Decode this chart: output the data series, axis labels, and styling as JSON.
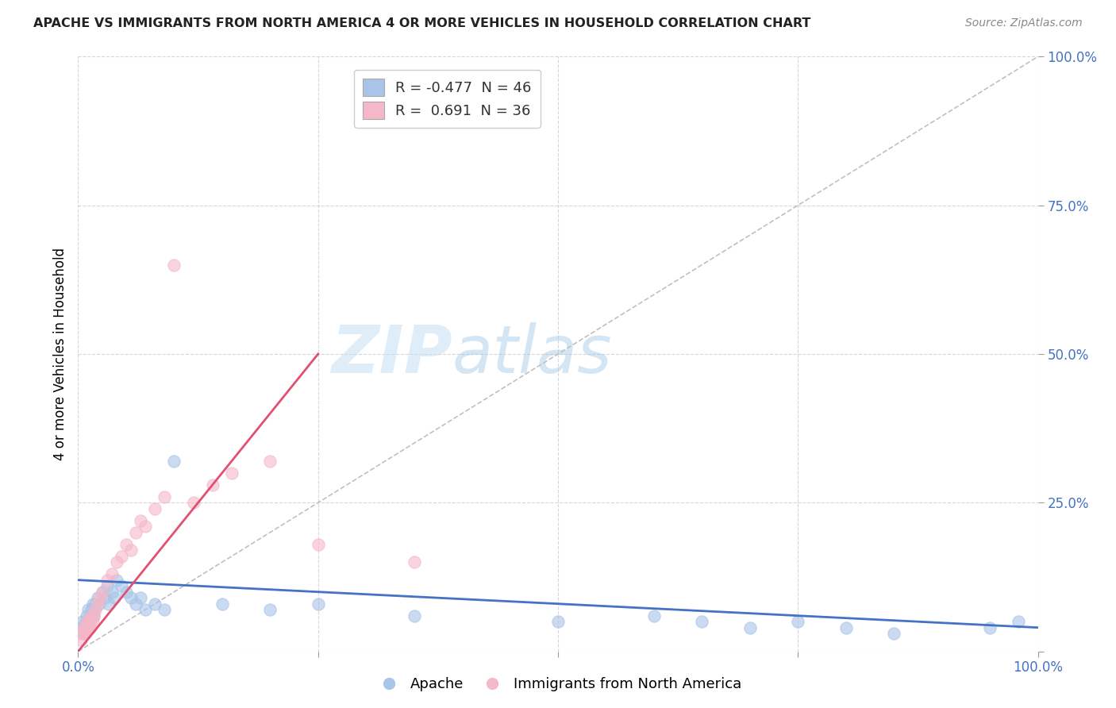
{
  "title": "APACHE VS IMMIGRANTS FROM NORTH AMERICA 4 OR MORE VEHICLES IN HOUSEHOLD CORRELATION CHART",
  "source": "Source: ZipAtlas.com",
  "ylabel": "4 or more Vehicles in Household",
  "xlim": [
    0.0,
    1.0
  ],
  "ylim": [
    0.0,
    1.0
  ],
  "xticks": [
    0.0,
    0.25,
    0.5,
    0.75,
    1.0
  ],
  "yticks": [
    0.0,
    0.25,
    0.5,
    0.75,
    1.0
  ],
  "xtick_labels": [
    "0.0%",
    "",
    "",
    "",
    "100.0%"
  ],
  "ytick_labels": [
    "",
    "25.0%",
    "50.0%",
    "75.0%",
    "100.0%"
  ],
  "legend1_label": "R = -0.477  N = 46",
  "legend2_label": "R =  0.691  N = 36",
  "blue_color": "#a8c4e8",
  "pink_color": "#f5b8c8",
  "blue_line_color": "#4472c4",
  "pink_line_color": "#e05070",
  "grid_color": "#cccccc",
  "watermark_zip": "ZIP",
  "watermark_atlas": "atlas",
  "apache_x": [
    0.003,
    0.005,
    0.006,
    0.007,
    0.008,
    0.009,
    0.01,
    0.011,
    0.012,
    0.013,
    0.014,
    0.015,
    0.016,
    0.017,
    0.018,
    0.02,
    0.022,
    0.025,
    0.028,
    0.03,
    0.032,
    0.035,
    0.038,
    0.04,
    0.045,
    0.05,
    0.055,
    0.06,
    0.065,
    0.07,
    0.08,
    0.09,
    0.1,
    0.15,
    0.2,
    0.25,
    0.35,
    0.5,
    0.6,
    0.65,
    0.7,
    0.75,
    0.8,
    0.85,
    0.95,
    0.98
  ],
  "apache_y": [
    0.04,
    0.05,
    0.03,
    0.04,
    0.05,
    0.06,
    0.07,
    0.05,
    0.04,
    0.06,
    0.07,
    0.08,
    0.06,
    0.07,
    0.08,
    0.09,
    0.08,
    0.1,
    0.09,
    0.11,
    0.08,
    0.1,
    0.09,
    0.12,
    0.11,
    0.1,
    0.09,
    0.08,
    0.09,
    0.07,
    0.08,
    0.07,
    0.32,
    0.08,
    0.07,
    0.08,
    0.06,
    0.05,
    0.06,
    0.05,
    0.04,
    0.05,
    0.04,
    0.03,
    0.04,
    0.05
  ],
  "immigrants_x": [
    0.003,
    0.004,
    0.005,
    0.006,
    0.007,
    0.008,
    0.009,
    0.01,
    0.011,
    0.012,
    0.013,
    0.014,
    0.015,
    0.016,
    0.018,
    0.02,
    0.022,
    0.025,
    0.03,
    0.035,
    0.04,
    0.045,
    0.05,
    0.055,
    0.06,
    0.065,
    0.07,
    0.08,
    0.09,
    0.1,
    0.12,
    0.14,
    0.16,
    0.2,
    0.25,
    0.35
  ],
  "immigrants_y": [
    0.02,
    0.03,
    0.03,
    0.04,
    0.03,
    0.04,
    0.05,
    0.04,
    0.05,
    0.04,
    0.05,
    0.06,
    0.05,
    0.06,
    0.07,
    0.08,
    0.09,
    0.1,
    0.12,
    0.13,
    0.15,
    0.16,
    0.18,
    0.17,
    0.2,
    0.22,
    0.21,
    0.24,
    0.26,
    0.65,
    0.25,
    0.28,
    0.3,
    0.32,
    0.18,
    0.15
  ],
  "blue_line_x0": 0.0,
  "blue_line_y0": 0.12,
  "blue_line_x1": 1.0,
  "blue_line_y1": 0.04,
  "pink_line_x0": 0.0,
  "pink_line_y0": 0.0,
  "pink_line_x1": 0.25,
  "pink_line_y1": 0.5
}
